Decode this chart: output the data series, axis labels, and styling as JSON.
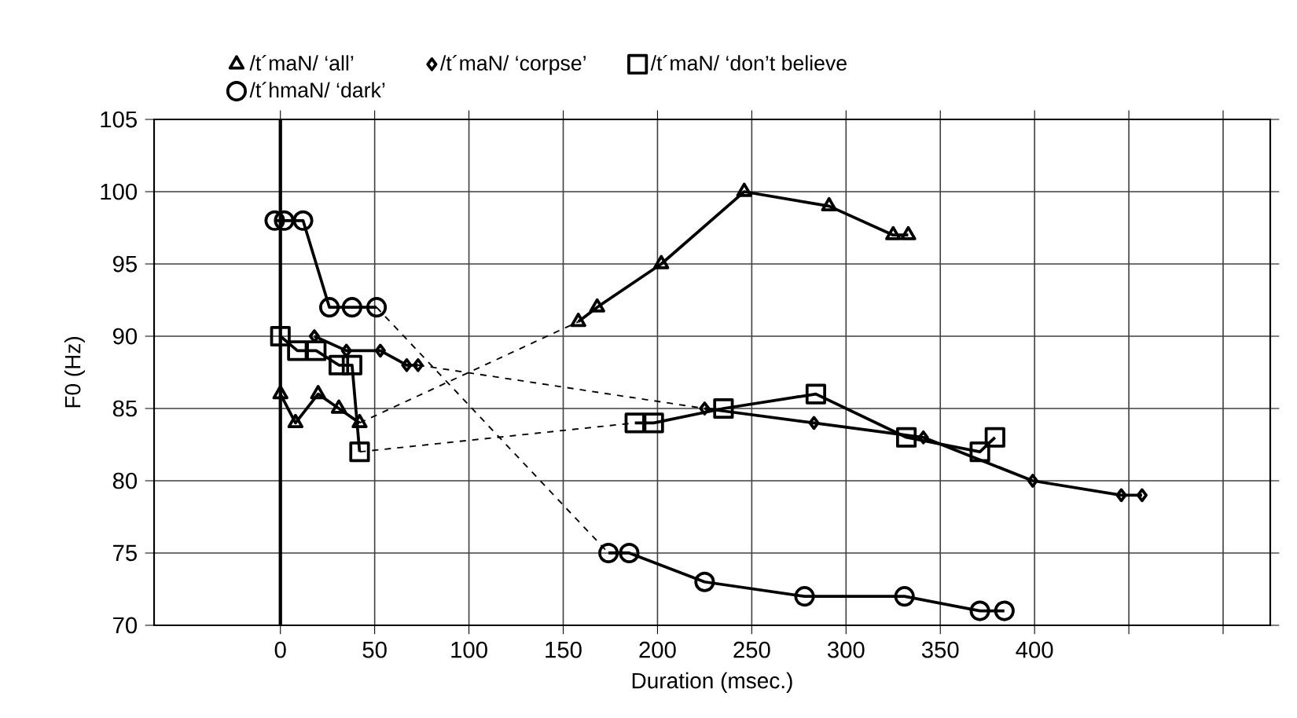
{
  "chart_data": {
    "type": "line",
    "xlabel": "Duration (msec.)",
    "ylabel": "F0 (Hz)",
    "xlim": [
      -67,
      525
    ],
    "ylim": [
      70,
      105
    ],
    "xticks": [
      0,
      50,
      100,
      150,
      200,
      250,
      300,
      350,
      400,
      {
        "value": 450,
        "label": null
      },
      {
        "value": 500,
        "label": null
      }
    ],
    "yticks": [
      70,
      75,
      80,
      85,
      90,
      95,
      100,
      105
    ],
    "grid": true,
    "legend": "top",
    "ref_lines": [
      {
        "axis": "x",
        "value": 0
      }
    ],
    "series": [
      {
        "name": "/t´maN/ ‘all’",
        "color": "#000000",
        "marker": "triangle",
        "line_style": "solid",
        "x": [
          0,
          8,
          20,
          31,
          42
        ],
        "values": [
          86,
          84,
          86,
          85,
          84
        ]
      },
      {
        "name": "/t´maN/ ‘corpse’",
        "color": "#000000",
        "marker": "diamond",
        "line_style": "solid",
        "x": [
          18,
          35,
          53,
          67,
          73
        ],
        "values": [
          90,
          89,
          89,
          88,
          88
        ]
      },
      {
        "name": "/t´maN/ ‘don’t believe",
        "color": "#000000",
        "marker": "square",
        "line_style": "solid",
        "x": [
          0,
          9,
          19,
          31,
          38,
          42
        ],
        "values": [
          90,
          89,
          89,
          88,
          88,
          82
        ]
      },
      {
        "name": "/t´hmaN/ ‘dark’",
        "color": "#000000",
        "marker": "circle",
        "line_style": "solid",
        "x": [
          -3,
          2,
          12,
          26,
          38,
          51
        ],
        "values": [
          98,
          98,
          98,
          92,
          92,
          92
        ]
      },
      {
        "color": "#000000",
        "marker": "triangle",
        "line_style": "solid",
        "x": [
          158,
          168,
          202,
          246,
          291,
          325,
          333
        ],
        "values": [
          91,
          92,
          95,
          100,
          99,
          97,
          97
        ]
      },
      {
        "color": "#000000",
        "marker": "diamond",
        "line_style": "solid",
        "x": [
          225,
          283,
          341,
          399,
          446,
          457
        ],
        "values": [
          85,
          84,
          83,
          80,
          79,
          79
        ]
      },
      {
        "color": "#000000",
        "marker": "square",
        "line_style": "solid",
        "x": [
          188,
          198,
          235,
          284,
          332,
          371,
          379
        ],
        "values": [
          84,
          84,
          85,
          86,
          83,
          82,
          83
        ]
      },
      {
        "color": "#000000",
        "marker": "circle",
        "line_style": "solid",
        "x": [
          174,
          185,
          225,
          278,
          331,
          371,
          384
        ],
        "values": [
          75,
          75,
          73,
          72,
          72,
          71,
          71
        ]
      },
      {
        "color": "#000000",
        "marker": "none",
        "line_style": "dashed",
        "x": [
          42,
          158
        ],
        "values": [
          84,
          91
        ]
      },
      {
        "color": "#000000",
        "marker": "none",
        "line_style": "dashed",
        "x": [
          73,
          225
        ],
        "values": [
          88,
          85
        ]
      },
      {
        "color": "#000000",
        "marker": "none",
        "line_style": "dashed",
        "x": [
          42,
          188
        ],
        "values": [
          82,
          84
        ]
      },
      {
        "color": "#000000",
        "marker": "none",
        "line_style": "dashed",
        "x": [
          51,
          174
        ],
        "values": [
          92,
          75
        ]
      }
    ]
  }
}
